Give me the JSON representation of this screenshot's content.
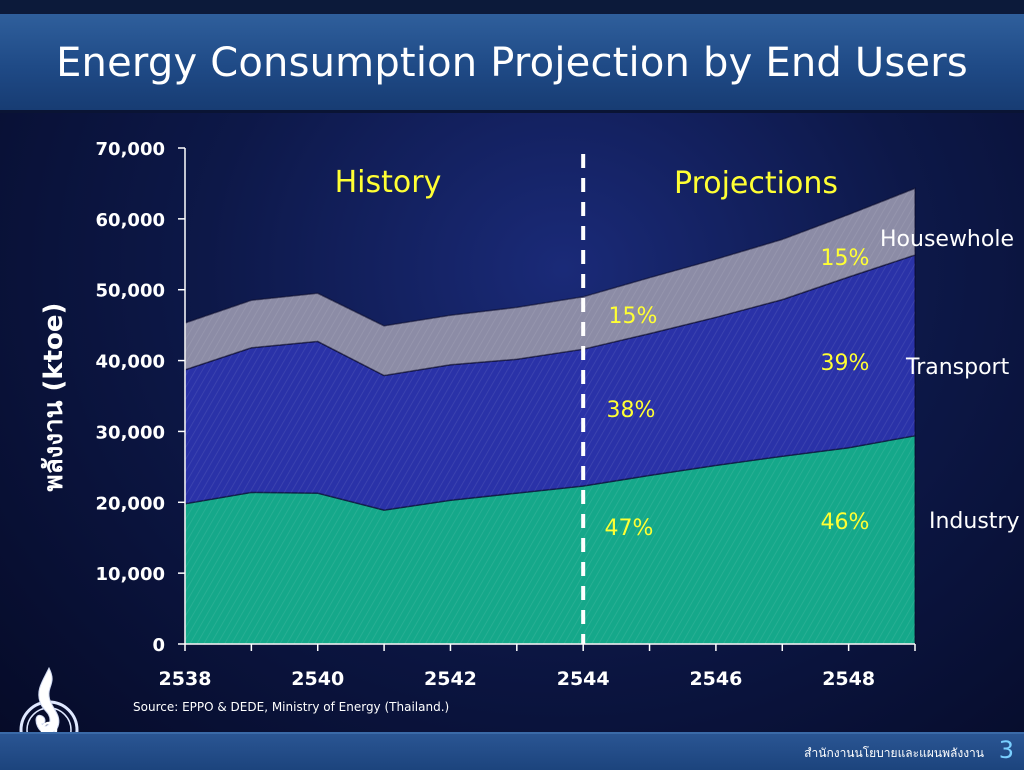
{
  "slide": {
    "title": "Energy Consumption Projection by End Users",
    "org_name": "สำนักงานนโยบายและแผนพลังงาน",
    "page_number": "3",
    "logo_icon": "thai-energy-ministry-seal-icon",
    "source": "Source: EPPO & DEDE, Ministry of Energy (Thailand.)"
  },
  "colors": {
    "industry": "#15a88a",
    "transport": "#2a32a8",
    "household": "#8c8ca6",
    "divider": "#ffffff",
    "highlight": "#ffff33"
  },
  "chart_data": {
    "type": "area",
    "stacked": true,
    "ylabel": "พลังงาน (ktoe)",
    "xlabel": "",
    "ylim": [
      0,
      70000
    ],
    "yticks": [
      0,
      10000,
      20000,
      30000,
      40000,
      50000,
      60000,
      70000
    ],
    "ytick_labels": [
      "0",
      "10,000",
      "20,000",
      "30,000",
      "40,000",
      "50,000",
      "60,000",
      "70,000"
    ],
    "xlim": [
      2538,
      2549
    ],
    "xticks": [
      2538,
      2540,
      2542,
      2544,
      2546,
      2548
    ],
    "xtick_labels": [
      "2538",
      "2540",
      "2542",
      "2544",
      "2546",
      "2548"
    ],
    "x": [
      2538,
      2539,
      2540,
      2541,
      2542,
      2543,
      2544,
      2545,
      2546,
      2547,
      2548,
      2549
    ],
    "series": [
      {
        "name": "Industry",
        "values": [
          19800,
          21400,
          21300,
          18900,
          20300,
          21300,
          22300,
          23800,
          25200,
          26500,
          27700,
          29400
        ]
      },
      {
        "name": "Transport",
        "values": [
          18900,
          20400,
          21400,
          19000,
          19100,
          18900,
          19300,
          20000,
          20900,
          22100,
          24100,
          25500
        ]
      },
      {
        "name": "Housewhole",
        "values": [
          6600,
          6700,
          6800,
          7000,
          7000,
          7300,
          7400,
          7900,
          8200,
          8500,
          8800,
          9400
        ]
      }
    ],
    "divider_x": 2544,
    "sections": [
      {
        "label": "History"
      },
      {
        "label": "Projections"
      }
    ],
    "annotations": {
      "history_pcts": {
        "household": "15%",
        "transport": "38%",
        "industry": "47%"
      },
      "projection_pcts": {
        "household": "15%",
        "transport": "39%",
        "industry": "46%"
      }
    },
    "grid": false,
    "legend": "right"
  }
}
